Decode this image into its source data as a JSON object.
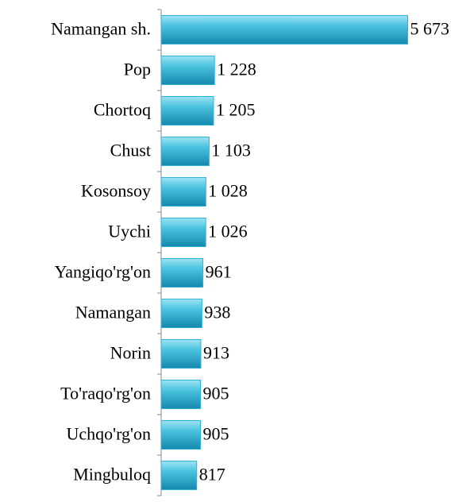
{
  "chart_data": {
    "type": "bar",
    "orientation": "horizontal",
    "categories": [
      "Namangan sh.",
      "Pop",
      "Chortoq",
      "Chust",
      "Kosonsoy",
      "Uychi",
      "Yangiqo'rg'on",
      "Namangan",
      "Norin",
      "To'raqo'rg'on",
      "Uchqo'rg'on",
      "Mingbuloq"
    ],
    "values": [
      5673,
      1228,
      1205,
      1103,
      1028,
      1026,
      961,
      938,
      913,
      905,
      905,
      817
    ],
    "value_labels": [
      "5 673",
      "1 228",
      "1 205",
      "1 103",
      "1 028",
      "1 026",
      "961",
      "938",
      "913",
      "905",
      "905",
      "817"
    ],
    "color": "#31b2d4",
    "xlim": [
      0,
      5700
    ]
  }
}
